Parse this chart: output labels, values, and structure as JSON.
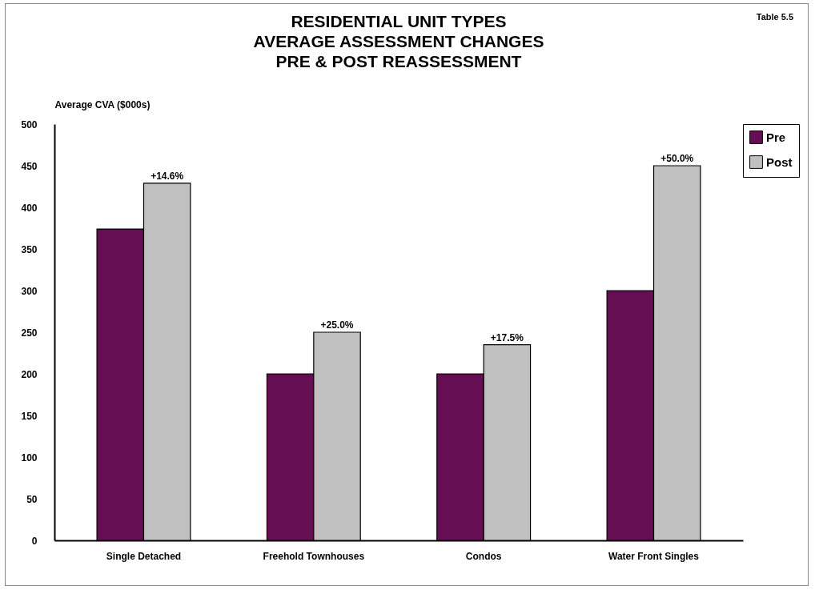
{
  "chart_data": {
    "type": "bar",
    "title": [
      "RESIDENTIAL UNIT TYPES",
      "AVERAGE ASSESSMENT CHANGES",
      "PRE & POST REASSESSMENT"
    ],
    "ylabel": "Average CVA ($000s)",
    "annotations": [
      "Table 5.5",
      {
        "text": "+14.6%",
        "x": "Single Detached",
        "y": 429
      },
      {
        "text": "+25.0%",
        "x": "Freehold Townhouses",
        "y": 250
      },
      {
        "text": "+17.5%",
        "x": "Condos",
        "y": 235
      },
      {
        "text": "+50.0%",
        "x": "Water Front Singles",
        "y": 450
      }
    ],
    "categories": [
      "Single Detached",
      "Freehold Townhouses",
      "Condos",
      "Water Front Singles"
    ],
    "series": [
      {
        "name": "Pre",
        "color": "#660e54",
        "values": [
          374,
          200,
          200,
          300
        ]
      },
      {
        "name": "Post",
        "color": "#c0c0c0",
        "values": [
          429,
          250,
          235,
          450
        ]
      }
    ],
    "ylim": [
      0,
      500
    ],
    "yticks": [
      0,
      50,
      100,
      150,
      200,
      250,
      300,
      350,
      400,
      450,
      500
    ],
    "grid": false,
    "legend": "top right"
  }
}
